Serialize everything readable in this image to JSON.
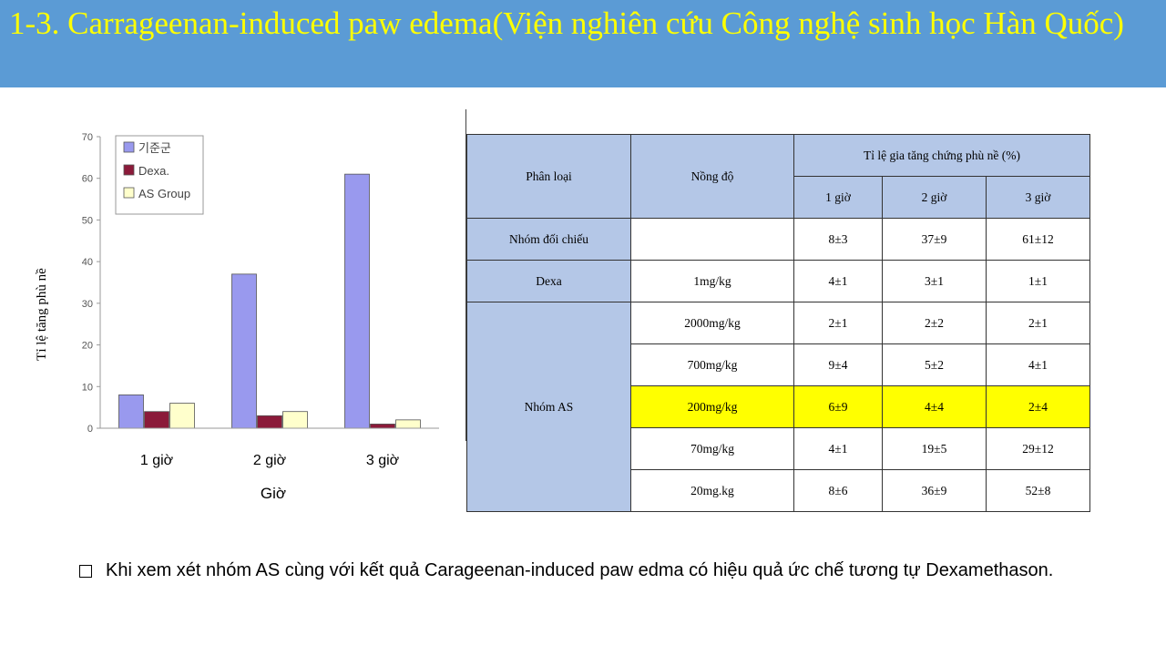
{
  "slide": {
    "title": "1-3. Carrageenan-induced paw edema(Viện nghiên cứu Công nghệ sinh học Hàn Quốc)",
    "bullet_text": "Khi xem xét nhóm AS cùng với kết quả Carageenan-induced paw edma có hiệu quả ức chế tương tự Dexamethason."
  },
  "chart_data": {
    "type": "bar",
    "categories": [
      "1 giờ",
      "2 giờ",
      "3 giờ"
    ],
    "series": [
      {
        "name": "기준군",
        "values": [
          8,
          37,
          61
        ],
        "color": "#9999ee"
      },
      {
        "name": "Dexa.",
        "values": [
          4,
          3,
          1
        ],
        "color": "#8b1a3a"
      },
      {
        "name": "AS Group",
        "values": [
          6,
          4,
          2
        ],
        "color": "#ffffcc"
      }
    ],
    "xlabel": "Giờ",
    "ylabel": "Tỉ lệ tăng phù nề",
    "ylim": [
      0,
      70
    ],
    "yticks": [
      0,
      10,
      20,
      30,
      40,
      50,
      60,
      70
    ],
    "legend_position": "top-left",
    "grid": false
  },
  "table": {
    "header": {
      "classification": "Phân loại",
      "concentration": "Nồng độ",
      "rate_header": "Tỉ lệ gia tăng chứng phù nề (%)",
      "hour1": "1 giờ",
      "hour2": "2 giờ",
      "hour3": "3 giờ"
    },
    "control": {
      "group": "Nhóm đối chiếu",
      "dose": "",
      "h1": "8±3",
      "h2": "37±9",
      "h3": "61±12"
    },
    "dexa": {
      "group": "Dexa",
      "dose": "1mg/kg",
      "h1": "4±1",
      "h2": "3±1",
      "h3": "1±1"
    },
    "as_group": "Nhóm AS",
    "as_rows": [
      {
        "dose": "2000mg/kg",
        "h1": "2±1",
        "h2": "2±2",
        "h3": "2±1"
      },
      {
        "dose": "700mg/kg",
        "h1": "9±4",
        "h2": "5±2",
        "h3": "4±1"
      },
      {
        "dose": "200mg/kg",
        "h1": "6±9",
        "h2": "4±4",
        "h3": "2±4"
      },
      {
        "dose": "70mg/kg",
        "h1": "4±1",
        "h2": "19±5",
        "h3": "29±12"
      },
      {
        "dose": "20mg.kg",
        "h1": "8±6",
        "h2": "36±9",
        "h3": "52±8"
      }
    ],
    "highlight_color": "#ffff00"
  }
}
